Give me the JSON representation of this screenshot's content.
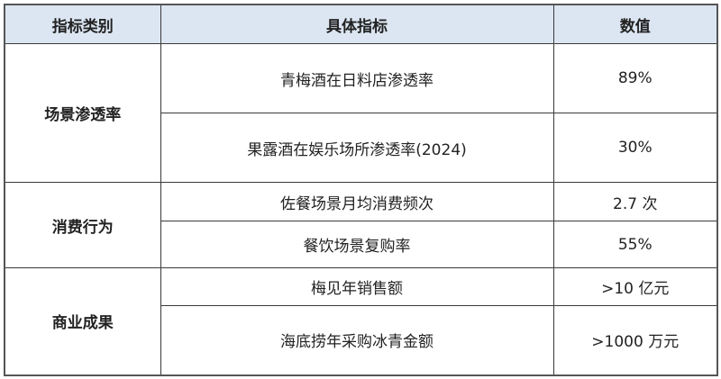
{
  "header": {
    "category": "指标类别",
    "indicator": "具体指标",
    "value": "数值"
  },
  "colors": {
    "header_bg": "#dce6f2",
    "border": "#3a3a3a"
  },
  "groups": [
    {
      "category": "场景渗透率",
      "rows": [
        {
          "indicator": "青梅酒在日料店渗透率",
          "value": "89%"
        },
        {
          "indicator": "果露酒在娱乐场所渗透率(2024)",
          "value": "30%"
        }
      ]
    },
    {
      "category": "消费行为",
      "rows": [
        {
          "indicator": "佐餐场景月均消费频次",
          "value": "2.7 次"
        },
        {
          "indicator": "餐饮场景复购率",
          "value": "55%"
        }
      ]
    },
    {
      "category": "商业成果",
      "rows": [
        {
          "indicator": "梅见年销售额",
          "value": ">10 亿元"
        },
        {
          "indicator": "海底捞年采购冰青金额",
          "value": ">1000 万元"
        }
      ]
    }
  ]
}
